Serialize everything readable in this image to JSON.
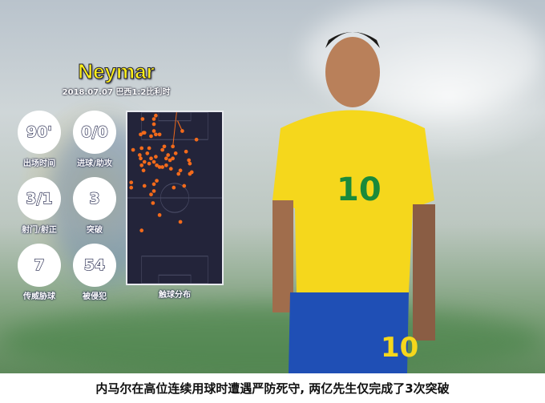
{
  "header": {
    "player_name": "Neymar",
    "match_info": "2018.07.07 巴西1:2比利时"
  },
  "stats": [
    {
      "value": "90'",
      "label": "出场时间"
    },
    {
      "value": "0/0",
      "label": "进球/助攻"
    },
    {
      "value": "3/1",
      "label": "射门/射正"
    },
    {
      "value": "3",
      "label": "突破"
    },
    {
      "value": "7",
      "label": "传威胁球"
    },
    {
      "value": "54",
      "label": "被侵犯"
    }
  ],
  "touch_map": {
    "label": "触球分布",
    "dot_color": "#f26a1b",
    "pitch_color": "#23243a"
  },
  "chart_data": {
    "type": "scatter",
    "title": "触球分布",
    "xlim": [
      0,
      100
    ],
    "ylim": [
      0,
      100
    ],
    "points": [
      [
        16,
        4
      ],
      [
        28,
        4
      ],
      [
        30,
        2
      ],
      [
        28,
        7
      ],
      [
        18,
        12
      ],
      [
        17,
        12
      ],
      [
        14,
        13
      ],
      [
        25,
        14
      ],
      [
        30,
        13
      ],
      [
        34,
        13
      ],
      [
        28,
        11
      ],
      [
        58,
        11
      ],
      [
        73,
        16
      ],
      [
        6,
        22
      ],
      [
        15,
        21
      ],
      [
        23,
        21
      ],
      [
        39,
        20
      ],
      [
        48,
        20
      ],
      [
        62,
        23
      ],
      [
        13,
        25
      ],
      [
        21,
        24
      ],
      [
        30,
        26
      ],
      [
        37,
        22
      ],
      [
        43,
        25
      ],
      [
        51,
        24
      ],
      [
        14,
        27
      ],
      [
        18,
        29
      ],
      [
        25,
        27
      ],
      [
        28,
        29
      ],
      [
        34,
        32
      ],
      [
        41,
        27
      ],
      [
        45,
        28
      ],
      [
        48,
        27
      ],
      [
        65,
        28
      ],
      [
        66,
        30
      ],
      [
        15,
        31
      ],
      [
        23,
        30
      ],
      [
        31,
        31
      ],
      [
        37,
        32
      ],
      [
        41,
        31
      ],
      [
        46,
        33
      ],
      [
        54,
        36
      ],
      [
        56,
        34
      ],
      [
        68,
        35
      ],
      [
        66,
        36
      ],
      [
        17,
        34
      ],
      [
        4,
        41
      ],
      [
        31,
        40
      ],
      [
        18,
        43
      ],
      [
        28,
        42
      ],
      [
        4,
        44
      ],
      [
        49,
        44
      ],
      [
        60,
        43
      ],
      [
        28,
        46
      ],
      [
        25,
        48
      ],
      [
        27,
        53
      ],
      [
        34,
        60
      ],
      [
        56,
        64
      ],
      [
        15,
        69
      ]
    ],
    "lines": [
      [
        [
          52,
          0
        ],
        [
          48,
          20
        ]
      ],
      [
        [
          53,
          5
        ],
        [
          58,
          11
        ]
      ]
    ]
  },
  "player": {
    "jersey_number": "10",
    "shirt_color": "#f5d71c",
    "shorts_color": "#1f4fb5"
  },
  "caption": "内马尔在高位连续用球时遭遇严防死守, 两亿先生仅完成了3次突破"
}
